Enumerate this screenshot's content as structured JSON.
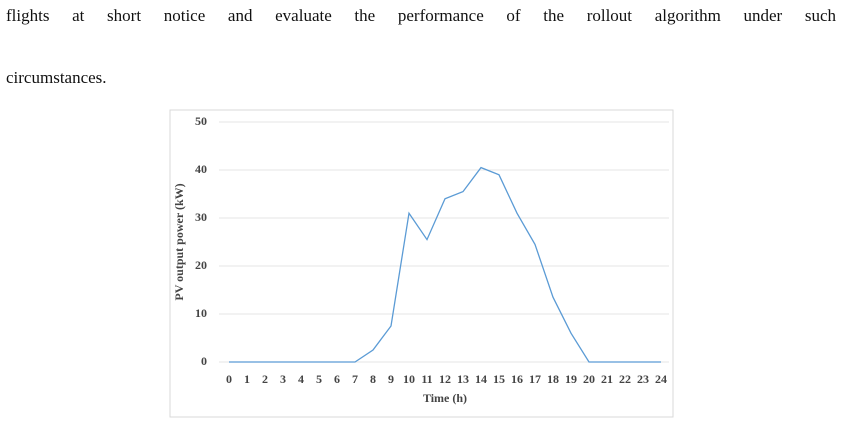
{
  "paragraph": {
    "lines": [
      "flights at short notice and evaluate the performance of the rollout algorithm under such",
      "circumstances."
    ]
  },
  "chart_data": {
    "type": "line",
    "x_label": "Time (h)",
    "y_label": "PV output power (kW)",
    "x": [
      0,
      1,
      2,
      3,
      4,
      5,
      6,
      7,
      8,
      9,
      10,
      11,
      12,
      13,
      14,
      15,
      16,
      17,
      18,
      19,
      20,
      21,
      22,
      23,
      24
    ],
    "series": [
      {
        "color": "#5b9bd5",
        "values": [
          0,
          0,
          0,
          0,
          0,
          0,
          0,
          0,
          2.5,
          7.5,
          31,
          25.5,
          34,
          35.5,
          40.5,
          39,
          31,
          24.5,
          13.5,
          6,
          0,
          0,
          0,
          0,
          0
        ]
      }
    ],
    "xlim": [
      0,
      24
    ],
    "xticks": [
      0,
      1,
      2,
      3,
      4,
      5,
      6,
      7,
      8,
      9,
      10,
      11,
      12,
      13,
      14,
      15,
      16,
      17,
      18,
      19,
      20,
      21,
      22,
      23,
      24
    ],
    "ylim": [
      0,
      50
    ],
    "yticks": [
      0,
      10,
      20,
      30,
      40,
      50
    ],
    "grid": true
  }
}
